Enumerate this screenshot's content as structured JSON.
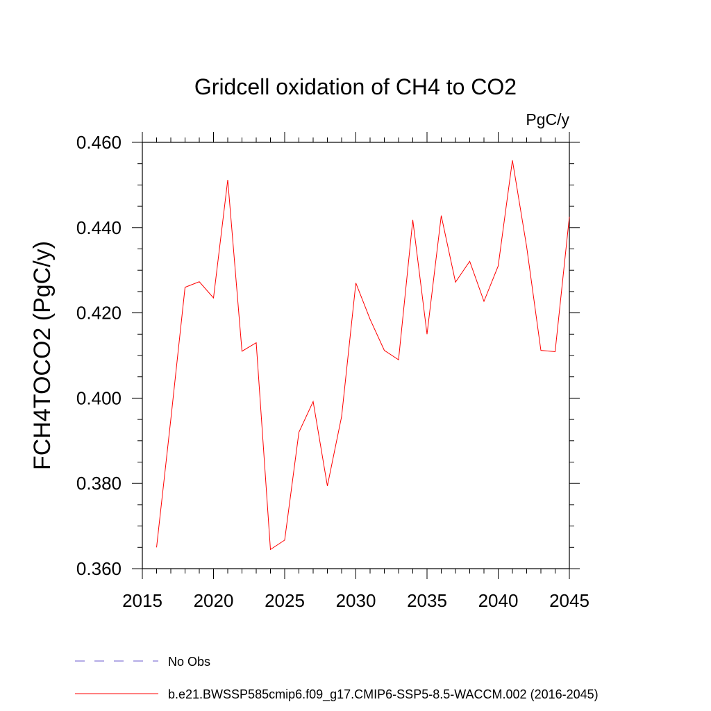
{
  "chart_data": {
    "type": "line",
    "title": "Gridcell oxidation of CH4 to CO2",
    "units": "PgC/y",
    "ylabel": "FCH4TOCO2  (PgC/y)",
    "xlabel": "",
    "xlim": [
      2015,
      2045
    ],
    "ylim": [
      0.36,
      0.46
    ],
    "x_ticks": [
      2015,
      2020,
      2025,
      2030,
      2035,
      2040,
      2045
    ],
    "y_ticks": [
      0.36,
      0.38,
      0.4,
      0.42,
      0.44,
      0.46
    ],
    "x_tick_labels": [
      "2015",
      "2020",
      "2025",
      "2030",
      "2035",
      "2040",
      "2045"
    ],
    "y_tick_labels": [
      "0.360",
      "0.380",
      "0.400",
      "0.420",
      "0.440",
      "0.460"
    ],
    "grid": false,
    "legend_position": "bottom",
    "series": [
      {
        "name": "b.e21.BWSSP585cmip6.f09_g17.CMIP6-SSP5-8.5-WACCM.002 (2016-2045)",
        "color": "#ff0000",
        "style": "solid",
        "x": [
          2016,
          2017,
          2018,
          2019,
          2020,
          2021,
          2022,
          2023,
          2024,
          2025,
          2026,
          2027,
          2028,
          2029,
          2030,
          2031,
          2032,
          2033,
          2034,
          2035,
          2036,
          2037,
          2038,
          2039,
          2040,
          2041,
          2042,
          2043,
          2044,
          2045
        ],
        "values": [
          0.365,
          0.395,
          0.426,
          0.4273,
          0.4235,
          0.4512,
          0.411,
          0.413,
          0.3645,
          0.3667,
          0.392,
          0.3992,
          0.3794,
          0.3957,
          0.427,
          0.4185,
          0.4112,
          0.409,
          0.4418,
          0.415,
          0.4428,
          0.4272,
          0.4321,
          0.4227,
          0.431,
          0.4558,
          0.4355,
          0.4112,
          0.4109,
          0.4425
        ]
      },
      {
        "name": "No Obs",
        "color": "#6a5acd",
        "style": "dashed",
        "x": [],
        "values": []
      }
    ]
  }
}
